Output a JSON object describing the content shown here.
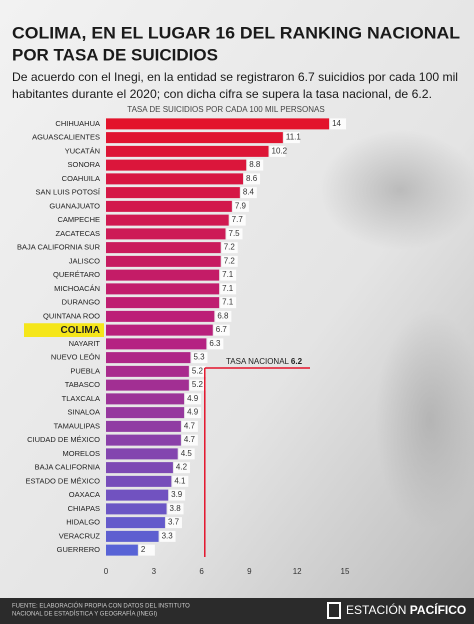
{
  "header": {
    "title": [
      "COLIMA, EN EL LUGAR 16 DEL RANKING NACIONAL",
      "POR TASA DE SUICIDIOS"
    ],
    "subtitle": [
      "De acuerdo con el Inegi, en la entidad se registraron 6.7 suicidios por cada 100 mil",
      "habitantes durante el 2020; con dicha cifra se supera la tasa nacional, de 6.2."
    ]
  },
  "chart_data": {
    "type": "bar",
    "orientation": "horizontal",
    "axis_title": "TASA DE SUICIDIOS POR CADA 100 MIL PERSONAS",
    "categories": [
      "CHIHUAHUA",
      "AGUASCALIENTES",
      "YUCATÁN",
      "SONORA",
      "COAHUILA",
      "SAN LUIS POTOSÍ",
      "GUANAJUATO",
      "CAMPECHE",
      "ZACATECAS",
      "BAJA CALIFORNIA SUR",
      "JALISCO",
      "QUERÉTARO",
      "MICHOACÁN",
      "DURANGO",
      "QUINTANA ROO",
      "COLIMA",
      "NAYARIT",
      "NUEVO LEÓN",
      "PUEBLA",
      "TABASCO",
      "TLAXCALA",
      "SINALOA",
      "TAMAULIPAS",
      "CIUDAD DE MÉXICO",
      "MORELOS",
      "BAJA CALIFORNIA",
      "ESTADO DE MÉXICO",
      "OAXACA",
      "CHIAPAS",
      "HIDALGO",
      "VERACRUZ",
      "GUERRERO"
    ],
    "values": [
      14,
      11.1,
      10.2,
      8.8,
      8.6,
      8.4,
      7.9,
      7.7,
      7.5,
      7.2,
      7.2,
      7.1,
      7.1,
      7.1,
      6.8,
      6.7,
      6.3,
      5.3,
      5.2,
      5.2,
      4.9,
      4.9,
      4.7,
      4.7,
      4.5,
      4.2,
      4.1,
      3.9,
      3.8,
      3.7,
      3.3,
      2
    ],
    "colors": [
      "#e3132b",
      "#b8207f",
      "#5863d6"
    ],
    "highlight": 15,
    "highlight_color": "#f5e61a",
    "xlim": [
      0,
      15
    ],
    "xticks": [
      0,
      3,
      6,
      9,
      12,
      15
    ],
    "reference_line": {
      "label": "TASA NACIONAL",
      "value": 6.2,
      "color": "#e3132b"
    }
  },
  "footer": {
    "source": [
      "FUENTE: ELABORACIÓN PROPIA CON DATOS DEL INSTITUTO",
      "NACIONAL DE ESTADÍSTICA Y GEOGRAFÍA (INEGI)"
    ],
    "brand": [
      "ESTACIÓN",
      "PACÍFICO"
    ]
  }
}
